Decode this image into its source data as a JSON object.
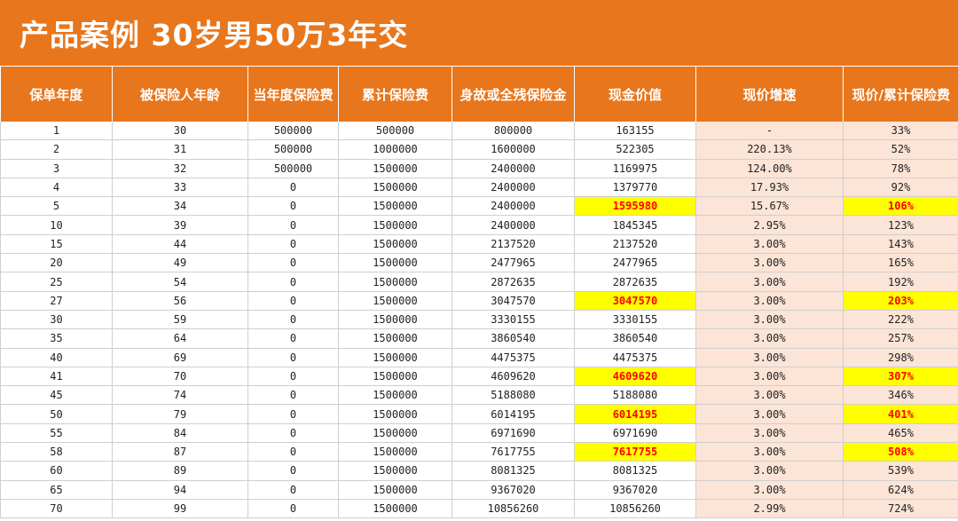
{
  "title": "产品案例 30岁男50万3年交",
  "colors": {
    "header": "#E8761C",
    "peach": "#FCE4D6",
    "highlight": "#FFFF00",
    "highlight_text": "#FF0000"
  },
  "headers": [
    "保单年度",
    "被保险人年龄",
    "当年度保险费",
    "累计保险费",
    "身故或全残保险金",
    "现金价值",
    "现价增速",
    "现价/累计保险费"
  ],
  "rows": [
    {
      "cells": [
        "1",
        "30",
        "500000",
        "500000",
        "800000",
        "163155",
        "-",
        "33%"
      ],
      "hl": false
    },
    {
      "cells": [
        "2",
        "31",
        "500000",
        "1000000",
        "1600000",
        "522305",
        "220.13%",
        "52%"
      ],
      "hl": false
    },
    {
      "cells": [
        "3",
        "32",
        "500000",
        "1500000",
        "2400000",
        "1169975",
        "124.00%",
        "78%"
      ],
      "hl": false
    },
    {
      "cells": [
        "4",
        "33",
        "0",
        "1500000",
        "2400000",
        "1379770",
        "17.93%",
        "92%"
      ],
      "hl": false
    },
    {
      "cells": [
        "5",
        "34",
        "0",
        "1500000",
        "2400000",
        "1595980",
        "15.67%",
        "106%"
      ],
      "hl": true
    },
    {
      "cells": [
        "10",
        "39",
        "0",
        "1500000",
        "2400000",
        "1845345",
        "2.95%",
        "123%"
      ],
      "hl": false
    },
    {
      "cells": [
        "15",
        "44",
        "0",
        "1500000",
        "2137520",
        "2137520",
        "3.00%",
        "143%"
      ],
      "hl": false
    },
    {
      "cells": [
        "20",
        "49",
        "0",
        "1500000",
        "2477965",
        "2477965",
        "3.00%",
        "165%"
      ],
      "hl": false
    },
    {
      "cells": [
        "25",
        "54",
        "0",
        "1500000",
        "2872635",
        "2872635",
        "3.00%",
        "192%"
      ],
      "hl": false
    },
    {
      "cells": [
        "27",
        "56",
        "0",
        "1500000",
        "3047570",
        "3047570",
        "3.00%",
        "203%"
      ],
      "hl": true
    },
    {
      "cells": [
        "30",
        "59",
        "0",
        "1500000",
        "3330155",
        "3330155",
        "3.00%",
        "222%"
      ],
      "hl": false
    },
    {
      "cells": [
        "35",
        "64",
        "0",
        "1500000",
        "3860540",
        "3860540",
        "3.00%",
        "257%"
      ],
      "hl": false
    },
    {
      "cells": [
        "40",
        "69",
        "0",
        "1500000",
        "4475375",
        "4475375",
        "3.00%",
        "298%"
      ],
      "hl": false
    },
    {
      "cells": [
        "41",
        "70",
        "0",
        "1500000",
        "4609620",
        "4609620",
        "3.00%",
        "307%"
      ],
      "hl": true
    },
    {
      "cells": [
        "45",
        "74",
        "0",
        "1500000",
        "5188080",
        "5188080",
        "3.00%",
        "346%"
      ],
      "hl": false
    },
    {
      "cells": [
        "50",
        "79",
        "0",
        "1500000",
        "6014195",
        "6014195",
        "3.00%",
        "401%"
      ],
      "hl": true
    },
    {
      "cells": [
        "55",
        "84",
        "0",
        "1500000",
        "6971690",
        "6971690",
        "3.00%",
        "465%"
      ],
      "hl": false
    },
    {
      "cells": [
        "58",
        "87",
        "0",
        "1500000",
        "7617755",
        "7617755",
        "3.00%",
        "508%"
      ],
      "hl": true
    },
    {
      "cells": [
        "60",
        "89",
        "0",
        "1500000",
        "8081325",
        "8081325",
        "3.00%",
        "539%"
      ],
      "hl": false
    },
    {
      "cells": [
        "65",
        "94",
        "0",
        "1500000",
        "9367020",
        "9367020",
        "3.00%",
        "624%"
      ],
      "hl": false
    },
    {
      "cells": [
        "70",
        "99",
        "0",
        "1500000",
        "10856260",
        "10856260",
        "2.99%",
        "724%"
      ],
      "hl": false
    }
  ]
}
